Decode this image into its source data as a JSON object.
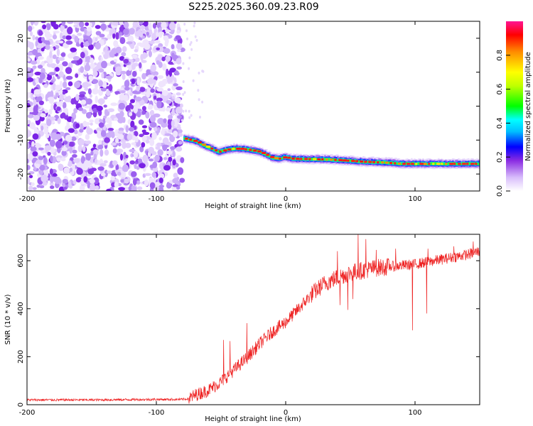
{
  "chart_data": [
    {
      "type": "heatmap",
      "title": "S225.2025.360.09.23.R09",
      "xlabel": "Height of straight line (km)",
      "ylabel": "Frequency (Hz)",
      "xlim": [
        -200,
        150
      ],
      "ylim": [
        -25,
        25
      ],
      "xticks": [
        -200,
        -100,
        0,
        100
      ],
      "xtick_labels": [
        "-200",
        "-100",
        "0",
        "100"
      ],
      "yticks": [
        -20,
        -10,
        0,
        10,
        20
      ],
      "ytick_labels": [
        "-20",
        "-10",
        "0",
        "10",
        "20"
      ],
      "noise_region_x": [
        -200,
        -80
      ],
      "signal_track": [
        {
          "x": -79,
          "f": -9.5
        },
        {
          "x": -73,
          "f": -10.0
        },
        {
          "x": -69,
          "f": -10.5
        },
        {
          "x": -64,
          "f": -11.5
        },
        {
          "x": -58,
          "f": -12.5
        },
        {
          "x": -52,
          "f": -13.5
        },
        {
          "x": -46,
          "f": -12.8
        },
        {
          "x": -40,
          "f": -12.5
        },
        {
          "x": -34,
          "f": -12.6
        },
        {
          "x": -28,
          "f": -12.9
        },
        {
          "x": -22,
          "f": -13.3
        },
        {
          "x": -16,
          "f": -14.2
        },
        {
          "x": -11,
          "f": -15.2
        },
        {
          "x": -6,
          "f": -15.5
        },
        {
          "x": -1,
          "f": -15.0
        },
        {
          "x": 5,
          "f": -15.5
        },
        {
          "x": 15,
          "f": -15.6
        },
        {
          "x": 30,
          "f": -15.7
        },
        {
          "x": 45,
          "f": -16.0
        },
        {
          "x": 60,
          "f": -16.4
        },
        {
          "x": 75,
          "f": -16.6
        },
        {
          "x": 90,
          "f": -17.0
        },
        {
          "x": 105,
          "f": -17.0
        },
        {
          "x": 120,
          "f": -17.0
        },
        {
          "x": 135,
          "f": -17.0
        },
        {
          "x": 150,
          "f": -17.0
        }
      ],
      "colorbar": {
        "label": "Normalized spectral amplitude",
        "range": [
          0,
          1
        ],
        "ticks": [
          0,
          0.2,
          0.4,
          0.6,
          0.8
        ],
        "tick_labels": [
          "0.0",
          "0.2",
          "0.4",
          "0.6",
          "0.8"
        ]
      }
    },
    {
      "type": "line",
      "xlabel": "Height of straight line (km)",
      "ylabel": "SNR (10 * v/v)",
      "xlim": [
        -200,
        150
      ],
      "ylim": [
        0,
        710
      ],
      "xticks": [
        -200,
        -100,
        0,
        100
      ],
      "xtick_labels": [
        "-200",
        "-100",
        "0",
        "100"
      ],
      "yticks": [
        0,
        200,
        400,
        600
      ],
      "ytick_labels": [
        "0",
        "200",
        "400",
        "600"
      ],
      "series": [
        {
          "name": "SNR",
          "color": "#ee2222",
          "x": [
            -200,
            -150,
            -100,
            -80,
            -75,
            -70,
            -60,
            -50,
            -40,
            -30,
            -20,
            -10,
            0,
            10,
            20,
            30,
            40,
            50,
            60,
            70,
            80,
            90,
            100,
            110,
            120,
            130,
            140,
            150
          ],
          "y": [
            20,
            20,
            22,
            22,
            25,
            40,
            60,
            95,
            145,
            195,
            255,
            305,
            345,
            400,
            460,
            505,
            530,
            550,
            560,
            570,
            575,
            580,
            585,
            595,
            605,
            615,
            625,
            640
          ]
        }
      ],
      "spikes": [
        {
          "x": -48,
          "y": 270
        },
        {
          "x": -43,
          "y": 265
        },
        {
          "x": -30,
          "y": 340
        },
        {
          "x": 40,
          "y": 640
        },
        {
          "x": 48,
          "y": 690
        },
        {
          "x": 56,
          "y": 710
        },
        {
          "x": 62,
          "y": 690
        },
        {
          "x": 70,
          "y": 645
        },
        {
          "x": 85,
          "y": 650
        },
        {
          "x": 110,
          "y": 650
        },
        {
          "x": 130,
          "y": 660
        },
        {
          "x": 145,
          "y": 680
        }
      ],
      "dips": [
        {
          "x": 42,
          "y": 415
        },
        {
          "x": 48,
          "y": 395
        },
        {
          "x": 52,
          "y": 440
        },
        {
          "x": 98,
          "y": 310
        },
        {
          "x": 109,
          "y": 380
        }
      ]
    }
  ]
}
